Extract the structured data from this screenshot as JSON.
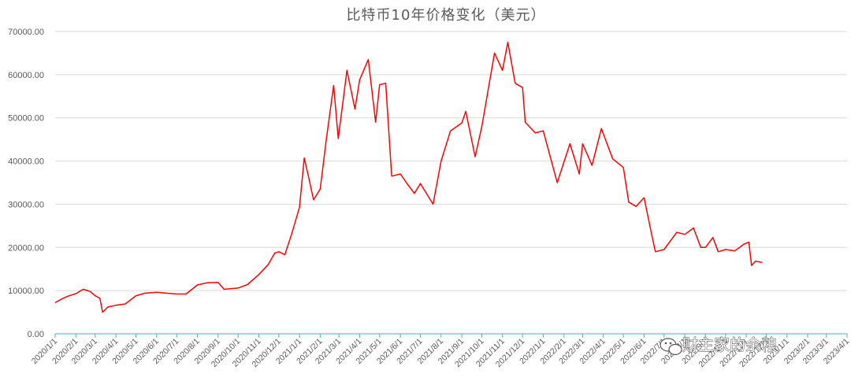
{
  "chart_data": {
    "type": "line",
    "title": "比特币10年价格变化（美元）",
    "xlabel": "",
    "ylabel": "",
    "ylim": [
      0,
      70000
    ],
    "yticks": [
      "0.00",
      "10000.00",
      "20000.00",
      "30000.00",
      "40000.00",
      "50000.00",
      "60000.00",
      "70000.00"
    ],
    "x_tick_labels": [
      "2020/1/1",
      "2020/2/1",
      "2020/3/1",
      "2020/4/1",
      "2020/5/1",
      "2020/6/1",
      "2020/7/1",
      "2020/8/1",
      "2020/9/1",
      "2020/10/1",
      "2020/11/1",
      "2020/12/1",
      "2021/1/1",
      "2021/2/1",
      "2021/3/1",
      "2021/4/1",
      "2021/5/1",
      "2021/6/1",
      "2021/7/1",
      "2021/8/1",
      "2021/9/1",
      "2021/10/1",
      "2021/11/1",
      "2021/12/1",
      "2022/1/1",
      "2022/2/1",
      "2022/3/1",
      "2022/4/1",
      "2022/5/1",
      "2022/6/1",
      "2022/7/1",
      "2022/8/1",
      "2022/9/1",
      "2022/10/1",
      "2022/11/1",
      "2022/12/1",
      "2023/1/1",
      "2023/2/1",
      "2023/3/1",
      "2023/4/1"
    ],
    "grid": true,
    "legend": "none",
    "series": [
      {
        "color": "#ff0000",
        "points": [
          [
            "2020/1/1",
            7200
          ],
          [
            "2020/1/10",
            8000
          ],
          [
            "2020/1/20",
            8700
          ],
          [
            "2020/2/1",
            9300
          ],
          [
            "2020/2/12",
            10300
          ],
          [
            "2020/2/22",
            9800
          ],
          [
            "2020/3/1",
            8800
          ],
          [
            "2020/3/8",
            8200
          ],
          [
            "2020/3/12",
            5000
          ],
          [
            "2020/3/20",
            6200
          ],
          [
            "2020/4/1",
            6600
          ],
          [
            "2020/4/15",
            6900
          ],
          [
            "2020/5/1",
            8800
          ],
          [
            "2020/5/15",
            9400
          ],
          [
            "2020/6/1",
            9600
          ],
          [
            "2020/6/15",
            9400
          ],
          [
            "2020/7/1",
            9200
          ],
          [
            "2020/7/15",
            9200
          ],
          [
            "2020/8/1",
            11300
          ],
          [
            "2020/8/15",
            11800
          ],
          [
            "2020/9/1",
            11900
          ],
          [
            "2020/9/10",
            10300
          ],
          [
            "2020/10/1",
            10600
          ],
          [
            "2020/10/15",
            11400
          ],
          [
            "2020/11/1",
            13700
          ],
          [
            "2020/11/15",
            16000
          ],
          [
            "2020/11/25",
            18700
          ],
          [
            "2020/12/1",
            19000
          ],
          [
            "2020/12/10",
            18300
          ],
          [
            "2020/12/20",
            23000
          ],
          [
            "2021/1/1",
            29300
          ],
          [
            "2021/1/8",
            40700
          ],
          [
            "2021/1/15",
            36000
          ],
          [
            "2021/1/22",
            31000
          ],
          [
            "2021/2/1",
            33500
          ],
          [
            "2021/2/10",
            44800
          ],
          [
            "2021/2/21",
            57500
          ],
          [
            "2021/2/28",
            45200
          ],
          [
            "2021/3/13",
            61000
          ],
          [
            "2021/3/25",
            52000
          ],
          [
            "2021/4/1",
            58800
          ],
          [
            "2021/4/14",
            63500
          ],
          [
            "2021/4/25",
            49000
          ],
          [
            "2021/5/1",
            57700
          ],
          [
            "2021/5/10",
            58000
          ],
          [
            "2021/5/19",
            36500
          ],
          [
            "2021/6/1",
            37000
          ],
          [
            "2021/6/10",
            35000
          ],
          [
            "2021/6/22",
            32500
          ],
          [
            "2021/7/1",
            34800
          ],
          [
            "2021/7/20",
            30000
          ],
          [
            "2021/8/1",
            40000
          ],
          [
            "2021/8/15",
            47000
          ],
          [
            "2021/9/1",
            48800
          ],
          [
            "2021/9/7",
            51500
          ],
          [
            "2021/9/21",
            41000
          ],
          [
            "2021/10/1",
            48000
          ],
          [
            "2021/10/20",
            65000
          ],
          [
            "2021/11/1",
            61000
          ],
          [
            "2021/11/9",
            67500
          ],
          [
            "2021/11/20",
            58000
          ],
          [
            "2021/12/1",
            57000
          ],
          [
            "2021/12/5",
            49000
          ],
          [
            "2021/12/20",
            46500
          ],
          [
            "2022/1/1",
            47000
          ],
          [
            "2022/1/22",
            35000
          ],
          [
            "2022/2/10",
            44000
          ],
          [
            "2022/2/24",
            37000
          ],
          [
            "2022/3/1",
            44000
          ],
          [
            "2022/3/15",
            39000
          ],
          [
            "2022/3/29",
            47500
          ],
          [
            "2022/4/15",
            40500
          ],
          [
            "2022/5/1",
            38500
          ],
          [
            "2022/5/9",
            30500
          ],
          [
            "2022/5/20",
            29500
          ],
          [
            "2022/6/1",
            31500
          ],
          [
            "2022/6/13",
            22500
          ],
          [
            "2022/6/18",
            19000
          ],
          [
            "2022/7/1",
            19500
          ],
          [
            "2022/7/20",
            23500
          ],
          [
            "2022/8/1",
            23000
          ],
          [
            "2022/8/14",
            24500
          ],
          [
            "2022/8/25",
            20000
          ],
          [
            "2022/9/1",
            20000
          ],
          [
            "2022/9/12",
            22300
          ],
          [
            "2022/9/20",
            19000
          ],
          [
            "2022/10/1",
            19500
          ],
          [
            "2022/10/15",
            19200
          ],
          [
            "2022/10/29",
            20800
          ],
          [
            "2022/11/5",
            21200
          ],
          [
            "2022/11/9",
            15800
          ],
          [
            "2022/11/15",
            16800
          ],
          [
            "2022/11/25",
            16500
          ]
        ]
      }
    ]
  },
  "watermark": {
    "icon": "wechat-icon",
    "text": "财主家的余粮"
  }
}
